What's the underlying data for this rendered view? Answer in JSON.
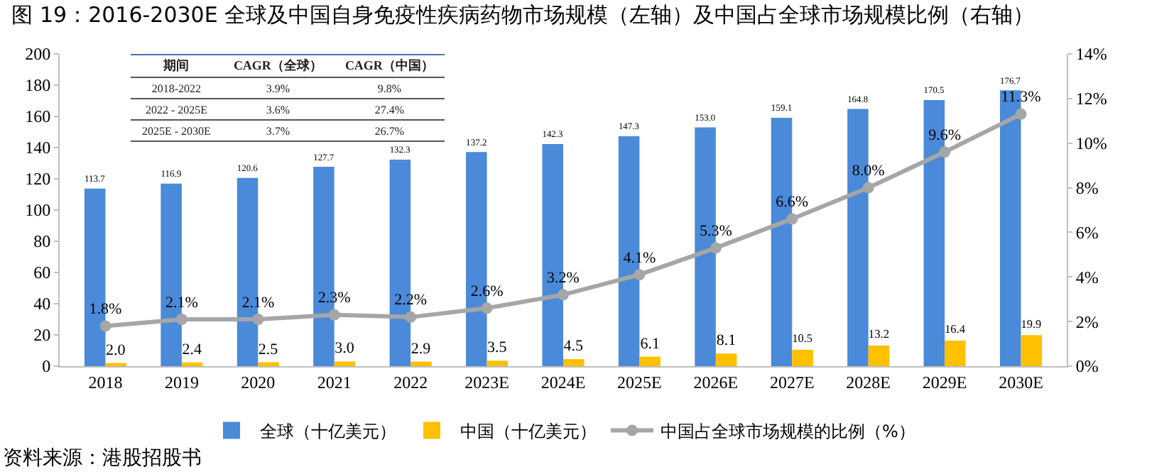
{
  "chart_data": {
    "type": "bar",
    "title": "图 19：2016-2030E 全球及中国自身免疫性疾病药物市场规模（左轴）及中国占全球市场规模比例（右轴）",
    "categories": [
      "2018",
      "2019",
      "2020",
      "2021",
      "2022",
      "2023E",
      "2024E",
      "2025E",
      "2026E",
      "2027E",
      "2028E",
      "2029E",
      "2030E"
    ],
    "series": [
      {
        "name": "全球（十亿美元）",
        "color": "#4a8ad8",
        "values": [
          113.7,
          116.9,
          120.6,
          127.7,
          132.3,
          137.2,
          142.3,
          147.3,
          153.0,
          159.1,
          164.8,
          170.5,
          176.7
        ],
        "value_labels": [
          "113.7",
          "116.9",
          "120.6",
          "127.7",
          "132.3",
          "137.2",
          "142.3",
          "147.3",
          "153.0",
          "159.1",
          "164.8",
          "170.5",
          "176.7"
        ]
      },
      {
        "name": "中国（十亿美元）",
        "color": "#ffc000",
        "values": [
          2.0,
          2.4,
          2.5,
          3.0,
          2.9,
          3.5,
          4.5,
          6.1,
          8.1,
          10.5,
          13.2,
          16.4,
          19.9
        ],
        "value_labels": [
          "2.0",
          "2.4",
          "2.5",
          "3.0",
          "2.9",
          "3.5",
          "4.5",
          "6.1",
          "8.1",
          "10.5",
          "13.2",
          "16.4",
          "19.9"
        ]
      },
      {
        "name": "中国占全球市场规模的比例（%）",
        "type": "line",
        "axis": "y2",
        "color": "#a6a6a6",
        "values": [
          1.8,
          2.1,
          2.1,
          2.3,
          2.2,
          2.6,
          3.2,
          4.1,
          5.3,
          6.6,
          8.0,
          9.6,
          11.3
        ],
        "value_labels": [
          "1.8%",
          "2.1%",
          "2.1%",
          "2.3%",
          "2.2%",
          "2.6%",
          "3.2%",
          "4.1%",
          "5.3%",
          "6.6%",
          "8.0%",
          "9.6%",
          "11.3%"
        ]
      }
    ],
    "ylim": [
      0,
      200
    ],
    "yticks": [
      0,
      20,
      40,
      60,
      80,
      100,
      120,
      140,
      160,
      180,
      200
    ],
    "y2lim": [
      0,
      14
    ],
    "y2ticks": [
      {
        "value": 0,
        "label": "0%"
      },
      {
        "value": 2,
        "label": "2%"
      },
      {
        "value": 4,
        "label": "4%"
      },
      {
        "value": 6,
        "label": "6%"
      },
      {
        "value": 8,
        "label": "8%"
      },
      {
        "value": 10,
        "label": "10%"
      },
      {
        "value": 12,
        "label": "12%"
      },
      {
        "value": 14,
        "label": "14%"
      }
    ],
    "marker": "circle",
    "legend": "bottom",
    "annotations": [
      "期间",
      "CAGR（全球）",
      "CAGR（中国）",
      "2018-2022",
      "3.9%",
      "9.8%",
      "2022 - 2025E",
      "3.6%",
      "27.4%",
      "2025E - 2030E",
      "3.7%",
      "26.7%",
      "资料来源：港股招股书"
    ]
  }
}
